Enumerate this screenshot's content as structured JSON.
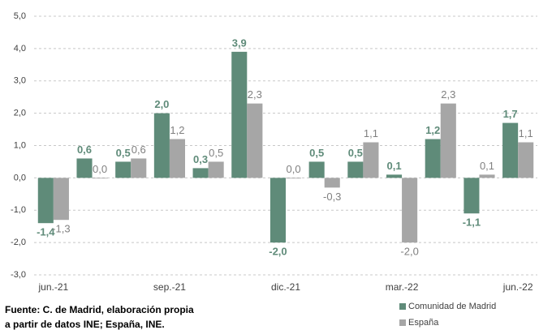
{
  "chart_data": {
    "type": "bar",
    "categories": [
      "jun.-21",
      null,
      null,
      "sep.-21",
      null,
      null,
      "dic.-21",
      null,
      null,
      "mar.-22",
      null,
      null,
      "jun.-22"
    ],
    "series": [
      {
        "name": "Comunidad de Madrid",
        "color": "#5f8b79",
        "values": [
          -1.4,
          0.6,
          0.5,
          2.0,
          0.3,
          3.9,
          -2.0,
          0.5,
          0.5,
          0.1,
          1.2,
          -1.1,
          1.7
        ],
        "value_labels": [
          "-1,4",
          "0,6",
          "0,5",
          "2,0",
          "0,3",
          "3,9",
          "-2,0",
          "0,5",
          "0,5",
          "0,1",
          "1,2",
          "-1,1",
          "1,7"
        ]
      },
      {
        "name": "España",
        "color": "#a6a6a6",
        "values": [
          -1.3,
          0.0,
          0.6,
          1.2,
          0.5,
          2.3,
          0.0,
          -0.3,
          1.1,
          -2.0,
          2.3,
          0.1,
          1.1
        ],
        "value_labels": [
          "-1,3",
          "0,0",
          "0,6",
          "1,2",
          "0,5",
          "2,3",
          "0,0",
          "-0,3",
          "1,1",
          "-2,0",
          "2,3",
          "0,1",
          "1,1"
        ]
      }
    ],
    "ylim": [
      -3.0,
      5.0
    ],
    "yticks": [
      {
        "value": -3.0,
        "label": "-3,0"
      },
      {
        "value": -2.0,
        "label": "-2,0"
      },
      {
        "value": -1.0,
        "label": "-1,0"
      },
      {
        "value": 0.0,
        "label": "0,0"
      },
      {
        "value": 1.0,
        "label": "1,0"
      },
      {
        "value": 2.0,
        "label": "2,0"
      },
      {
        "value": 3.0,
        "label": "3,0"
      },
      {
        "value": 4.0,
        "label": "4,0"
      },
      {
        "value": 5.0,
        "label": "5,0"
      }
    ],
    "grid": true,
    "source": [
      "Fuente: C. de Madrid, elaboración propia",
      "a partir de datos INE; España, INE."
    ]
  }
}
